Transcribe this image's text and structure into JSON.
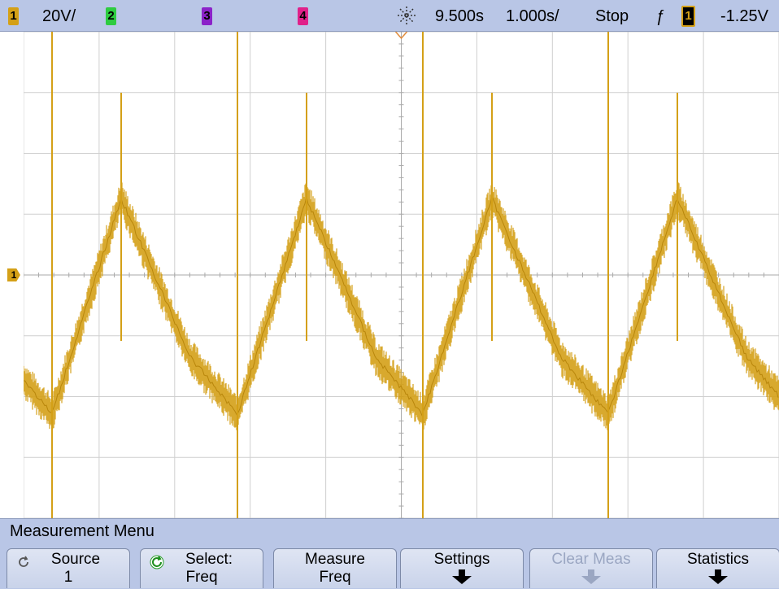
{
  "status_bar": {
    "ch1_label": "1",
    "ch1_scale": "20V/",
    "ch2_label": "2",
    "ch3_label": "3",
    "ch4_label": "4",
    "time_delay": "9.500s",
    "time_scale": "1.000s/",
    "run_state": "Stop",
    "trigger_slope": "ƒ",
    "trigger_source": "1",
    "trigger_level": "-1.25V"
  },
  "colors": {
    "ch1": "#d4a017",
    "ch2": "#2ecc40",
    "ch3": "#8b22c9",
    "ch4": "#e0218a",
    "ui_bar": "#b9c6e6",
    "grid": "#cfcfcf"
  },
  "ground_marker": "1",
  "menu": {
    "title": "Measurement Menu",
    "softkeys": [
      {
        "line1": "Source",
        "line2": "1",
        "icon": "rotate-icon",
        "enabled": true
      },
      {
        "line1": "Select:",
        "line2": "Freq",
        "icon": "rotate-green-icon",
        "enabled": true
      },
      {
        "line1": "Measure",
        "line2": "Freq",
        "enabled": true
      },
      {
        "line1": "Settings",
        "arrow": "down",
        "enabled": true
      },
      {
        "line1": "Clear Meas",
        "arrow": "down",
        "enabled": false
      },
      {
        "line1": "Statistics",
        "arrow": "down",
        "enabled": true
      }
    ]
  }
}
